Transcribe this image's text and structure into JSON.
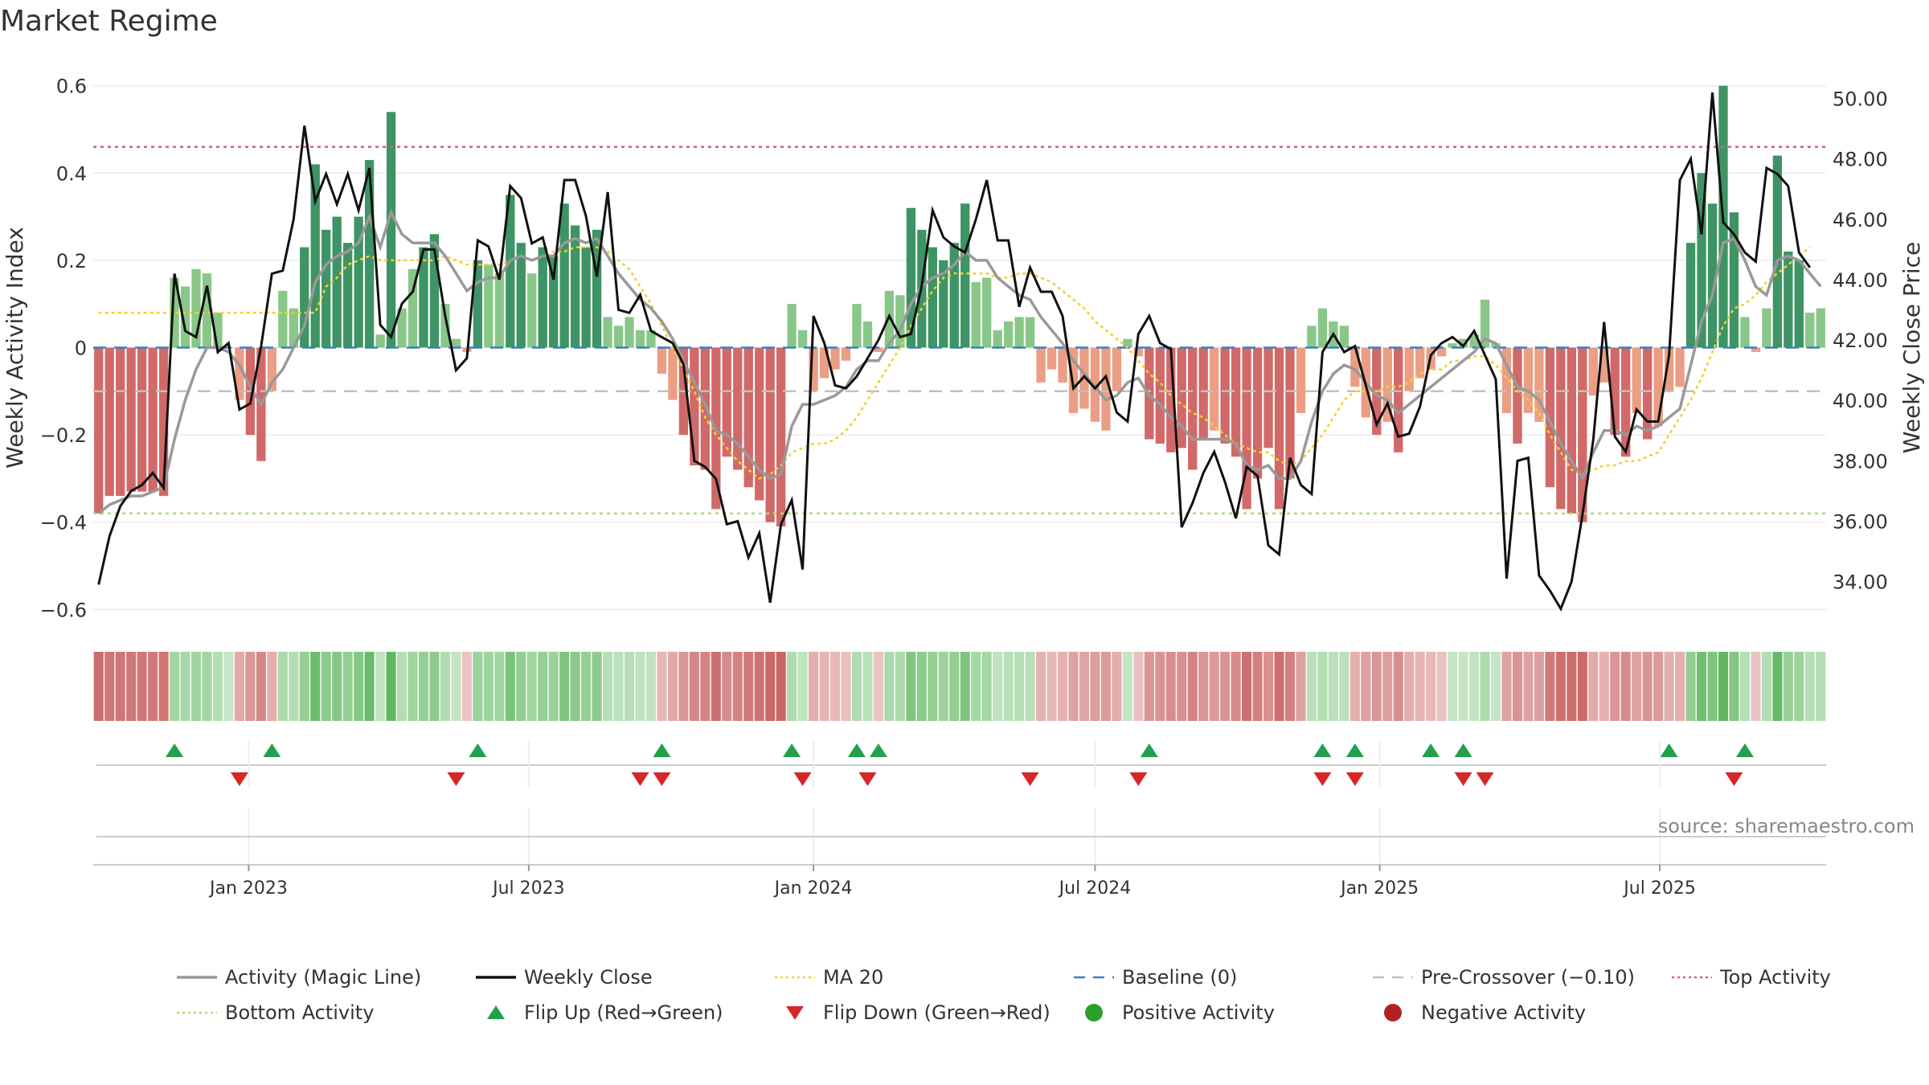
{
  "title": "Market Regime",
  "source": "source: sharemaestro.com",
  "colors": {
    "pos_dark": "#2e8b57",
    "pos_light": "#7fc27f",
    "neg_dark": "#cd5c5c",
    "neg_light": "#e9967a",
    "magic": "#999999",
    "close": "#111111",
    "ma20": "#f2d22e",
    "baseline": "#3a7fc0",
    "precross": "#c0c0c0",
    "top": "#e05a7a",
    "bottom": "#a8dc7a",
    "flip_up": "#22a04b",
    "flip_down": "#d62728",
    "pos_dot": "#2ca02c",
    "neg_dot": "#b22222"
  },
  "legend": [
    {
      "label": "Activity (Magic Line)",
      "symbol": "line",
      "color": "#999999"
    },
    {
      "label": "Weekly Close",
      "symbol": "line",
      "color": "#111111"
    },
    {
      "label": "MA 20",
      "symbol": "dotted",
      "color": "#f2d22e"
    },
    {
      "label": "Baseline (0)",
      "symbol": "dashed",
      "color": "#3a7fc0"
    },
    {
      "label": "Pre-Crossover (−0.10)",
      "symbol": "dashed",
      "color": "#c0c0c0"
    },
    {
      "label": "Top Activity",
      "symbol": "dotted",
      "color": "#e05a7a"
    },
    {
      "label": "Bottom Activity",
      "symbol": "dotted",
      "color": "#a8dc7a"
    },
    {
      "label": "Flip Up (Red→Green)",
      "symbol": "triangle-up",
      "color": "#22a04b"
    },
    {
      "label": "Flip Down (Green→Red)",
      "symbol": "triangle-down",
      "color": "#d62728"
    },
    {
      "label": "Positive Activity",
      "symbol": "dot",
      "color": "#2ca02c"
    },
    {
      "label": "Negative Activity",
      "symbol": "dot",
      "color": "#b22222"
    }
  ],
  "chart_data": {
    "type": "bar",
    "x_start": "2022-09-26",
    "x_step_days": 7,
    "x_tick_labels": [
      "Jan 2023",
      "Jul 2023",
      "Jan 2024",
      "Jul 2024",
      "Jan 2025",
      "Jul 2025"
    ],
    "x_tick_dates": [
      "2023-01-01",
      "2023-07-01",
      "2024-01-01",
      "2024-07-01",
      "2025-01-01",
      "2025-07-01"
    ],
    "y_left": {
      "label": "Weekly Activity Index",
      "lim": [
        -0.64,
        0.64
      ],
      "ticks": [
        0.6,
        0.4,
        0.2,
        0,
        -0.2,
        -0.4,
        -0.6
      ],
      "tick_labels": [
        "0.6",
        "0.4",
        "0.2",
        "0",
        "−0.2",
        "−0.4",
        "−0.6"
      ]
    },
    "y_right": {
      "label": "Weekly Close Price",
      "lim": [
        32.5,
        51.0
      ],
      "ticks": [
        50,
        48,
        46,
        44,
        42,
        40,
        38,
        36,
        34
      ],
      "tick_labels": [
        "50.00",
        "48.00",
        "46.00",
        "44.00",
        "42.00",
        "40.00",
        "38.00",
        "36.00",
        "34.00"
      ]
    },
    "reference_lines": {
      "baseline": 0,
      "pre_crossover": -0.1,
      "top_activity": 0.46,
      "bottom_activity": -0.38
    },
    "activity": [
      -0.38,
      -0.34,
      -0.34,
      -0.33,
      -0.33,
      -0.33,
      -0.34,
      0.16,
      0.14,
      0.18,
      0.17,
      0.08,
      0.0,
      -0.12,
      -0.2,
      -0.26,
      -0.1,
      0.13,
      0.09,
      0.23,
      0.42,
      0.27,
      0.3,
      0.24,
      0.3,
      0.43,
      0.03,
      0.54,
      0.09,
      0.18,
      0.23,
      0.26,
      0.1,
      0.02,
      -0.01,
      0.2,
      0.19,
      0.17,
      0.35,
      0.24,
      0.17,
      0.23,
      0.21,
      0.33,
      0.28,
      0.23,
      0.27,
      0.07,
      0.05,
      0.07,
      0.04,
      0.04,
      -0.06,
      -0.12,
      -0.2,
      -0.27,
      -0.28,
      -0.37,
      -0.25,
      -0.28,
      -0.32,
      -0.35,
      -0.4,
      -0.41,
      0.1,
      0.04,
      -0.1,
      -0.07,
      -0.05,
      -0.03,
      0.1,
      0.06,
      -0.01,
      0.13,
      0.12,
      0.32,
      0.27,
      0.23,
      0.2,
      0.24,
      0.33,
      0.15,
      0.16,
      0.04,
      0.06,
      0.07,
      0.07,
      -0.08,
      -0.05,
      -0.08,
      -0.15,
      -0.14,
      -0.17,
      -0.19,
      -0.1,
      0.02,
      -0.02,
      -0.21,
      -0.22,
      -0.24,
      -0.23,
      -0.28,
      -0.21,
      -0.19,
      -0.22,
      -0.25,
      -0.37,
      -0.3,
      -0.23,
      -0.37,
      -0.3,
      -0.15,
      0.05,
      0.09,
      0.06,
      0.05,
      -0.09,
      -0.16,
      -0.2,
      -0.17,
      -0.24,
      -0.1,
      -0.07,
      -0.05,
      -0.02,
      0.01,
      0.02,
      0.03,
      0.11,
      0.01,
      -0.15,
      -0.22,
      -0.15,
      -0.17,
      -0.32,
      -0.37,
      -0.38,
      -0.4,
      -0.11,
      -0.08,
      -0.2,
      -0.25,
      -0.15,
      -0.21,
      -0.18,
      -0.1,
      -0.09,
      0.24,
      0.4,
      0.33,
      0.6,
      0.31,
      0.07,
      -0.01,
      0.09,
      0.44,
      0.22,
      0.2,
      0.08,
      0.09
    ],
    "close": [
      33.9,
      35.5,
      36.5,
      37.0,
      37.2,
      37.6,
      37.1,
      44.2,
      42.3,
      42.1,
      43.8,
      41.6,
      41.9,
      39.7,
      39.9,
      41.8,
      44.2,
      44.3,
      46.0,
      49.1,
      46.6,
      47.5,
      46.5,
      47.5,
      46.3,
      47.7,
      42.5,
      42.1,
      43.2,
      43.6,
      45.0,
      45.0,
      42.8,
      41.0,
      41.4,
      45.3,
      45.1,
      44.0,
      47.1,
      46.7,
      45.2,
      45.4,
      44.0,
      47.3,
      47.3,
      46.1,
      44.1,
      46.9,
      43.0,
      42.9,
      43.5,
      42.3,
      42.1,
      41.9,
      41.2,
      38.0,
      37.8,
      37.4,
      35.9,
      36.0,
      34.8,
      35.6,
      33.3,
      35.9,
      36.7,
      34.4,
      42.8,
      41.9,
      40.5,
      40.4,
      40.8,
      41.4,
      42.0,
      42.8,
      42.1,
      42.2,
      43.8,
      46.3,
      45.4,
      45.1,
      44.9,
      46.0,
      47.3,
      45.3,
      45.3,
      43.1,
      44.4,
      43.6,
      43.6,
      42.8,
      40.4,
      40.8,
      40.4,
      40.8,
      39.6,
      39.3,
      42.2,
      42.8,
      41.9,
      41.7,
      35.8,
      36.6,
      37.6,
      38.3,
      37.3,
      36.1,
      37.8,
      37.5,
      35.2,
      34.9,
      38.1,
      37.2,
      36.9,
      41.6,
      42.2,
      41.6,
      41.8,
      40.5,
      39.2,
      39.9,
      38.8,
      38.9,
      39.8,
      41.5,
      41.9,
      42.1,
      41.8,
      42.3,
      41.5,
      40.7,
      34.1,
      38.0,
      38.1,
      34.2,
      33.7,
      33.1,
      34.0,
      36.2,
      38.7,
      42.6,
      38.8,
      38.3,
      39.7,
      39.3,
      39.3,
      41.5,
      47.3,
      48.0,
      45.5,
      50.2,
      45.9,
      45.5,
      44.9,
      44.6,
      47.7,
      47.5,
      47.1,
      44.9,
      44.4
    ],
    "magic_line": [
      -0.38,
      -0.36,
      -0.35,
      -0.34,
      -0.34,
      -0.33,
      -0.32,
      -0.21,
      -0.12,
      -0.05,
      0.0,
      0.0,
      -0.01,
      -0.04,
      -0.09,
      -0.13,
      -0.08,
      -0.05,
      0.0,
      0.05,
      0.15,
      0.19,
      0.21,
      0.22,
      0.24,
      0.3,
      0.23,
      0.31,
      0.26,
      0.24,
      0.24,
      0.24,
      0.21,
      0.17,
      0.13,
      0.15,
      0.16,
      0.16,
      0.2,
      0.21,
      0.2,
      0.21,
      0.21,
      0.24,
      0.25,
      0.24,
      0.25,
      0.21,
      0.17,
      0.14,
      0.11,
      0.09,
      0.06,
      0.02,
      -0.03,
      -0.08,
      -0.13,
      -0.19,
      -0.2,
      -0.22,
      -0.25,
      -0.28,
      -0.3,
      -0.29,
      -0.18,
      -0.13,
      -0.13,
      -0.12,
      -0.11,
      -0.09,
      -0.05,
      -0.03,
      -0.03,
      0.01,
      0.04,
      0.1,
      0.14,
      0.16,
      0.17,
      0.19,
      0.22,
      0.2,
      0.2,
      0.16,
      0.14,
      0.12,
      0.11,
      0.07,
      0.04,
      0.01,
      -0.03,
      -0.06,
      -0.09,
      -0.12,
      -0.11,
      -0.08,
      -0.07,
      -0.11,
      -0.13,
      -0.16,
      -0.18,
      -0.21,
      -0.21,
      -0.21,
      -0.21,
      -0.22,
      -0.27,
      -0.28,
      -0.27,
      -0.3,
      -0.3,
      -0.26,
      -0.17,
      -0.1,
      -0.06,
      -0.04,
      -0.05,
      -0.08,
      -0.11,
      -0.12,
      -0.15,
      -0.13,
      -0.11,
      -0.09,
      -0.07,
      -0.05,
      -0.03,
      -0.01,
      0.02,
      0.01,
      -0.04,
      -0.09,
      -0.1,
      -0.12,
      -0.17,
      -0.22,
      -0.26,
      -0.3,
      -0.24,
      -0.19,
      -0.19,
      -0.2,
      -0.18,
      -0.19,
      -0.18,
      -0.16,
      -0.14,
      -0.04,
      0.06,
      0.12,
      0.24,
      0.25,
      0.2,
      0.14,
      0.12,
      0.2,
      0.21,
      0.2,
      0.17,
      0.14
    ],
    "ma20": [
      0.08,
      0.08,
      0.08,
      0.08,
      0.08,
      0.08,
      0.08,
      0.08,
      0.08,
      0.08,
      0.08,
      0.08,
      0.08,
      0.08,
      0.08,
      0.08,
      0.08,
      0.08,
      0.08,
      0.08,
      0.08,
      0.14,
      0.16,
      0.19,
      0.2,
      0.21,
      0.2,
      0.2,
      0.2,
      0.2,
      0.2,
      0.2,
      0.21,
      0.2,
      0.19,
      0.19,
      0.19,
      0.19,
      0.2,
      0.21,
      0.2,
      0.21,
      0.22,
      0.22,
      0.23,
      0.23,
      0.23,
      0.22,
      0.2,
      0.18,
      0.14,
      0.1,
      0.05,
      0.0,
      -0.05,
      -0.1,
      -0.16,
      -0.2,
      -0.23,
      -0.26,
      -0.28,
      -0.3,
      -0.29,
      -0.27,
      -0.24,
      -0.23,
      -0.22,
      -0.22,
      -0.21,
      -0.19,
      -0.16,
      -0.12,
      -0.08,
      -0.04,
      0.0,
      0.05,
      0.09,
      0.13,
      0.16,
      0.17,
      0.17,
      0.17,
      0.17,
      0.16,
      0.16,
      0.17,
      0.17,
      0.16,
      0.15,
      0.13,
      0.11,
      0.09,
      0.06,
      0.04,
      0.02,
      0.0,
      -0.03,
      -0.06,
      -0.08,
      -0.11,
      -0.13,
      -0.15,
      -0.16,
      -0.18,
      -0.2,
      -0.22,
      -0.23,
      -0.24,
      -0.24,
      -0.26,
      -0.27,
      -0.26,
      -0.23,
      -0.2,
      -0.16,
      -0.12,
      -0.1,
      -0.1,
      -0.1,
      -0.09,
      -0.09,
      -0.08,
      -0.06,
      -0.05,
      -0.05,
      -0.03,
      -0.03,
      -0.02,
      -0.02,
      -0.04,
      -0.07,
      -0.1,
      -0.12,
      -0.15,
      -0.2,
      -0.24,
      -0.28,
      -0.29,
      -0.28,
      -0.27,
      -0.27,
      -0.26,
      -0.26,
      -0.25,
      -0.24,
      -0.2,
      -0.16,
      -0.12,
      -0.07,
      -0.01,
      0.05,
      0.09,
      0.1,
      0.12,
      0.15,
      0.17,
      0.19,
      0.21,
      0.23
    ],
    "flip_up_idx": [
      7,
      16,
      35,
      52,
      64,
      70,
      72,
      97,
      113,
      116,
      123,
      126,
      145,
      152
    ],
    "flip_down_idx": [
      13,
      33,
      50,
      52,
      65,
      71,
      86,
      96,
      113,
      116,
      126,
      128,
      151
    ]
  }
}
